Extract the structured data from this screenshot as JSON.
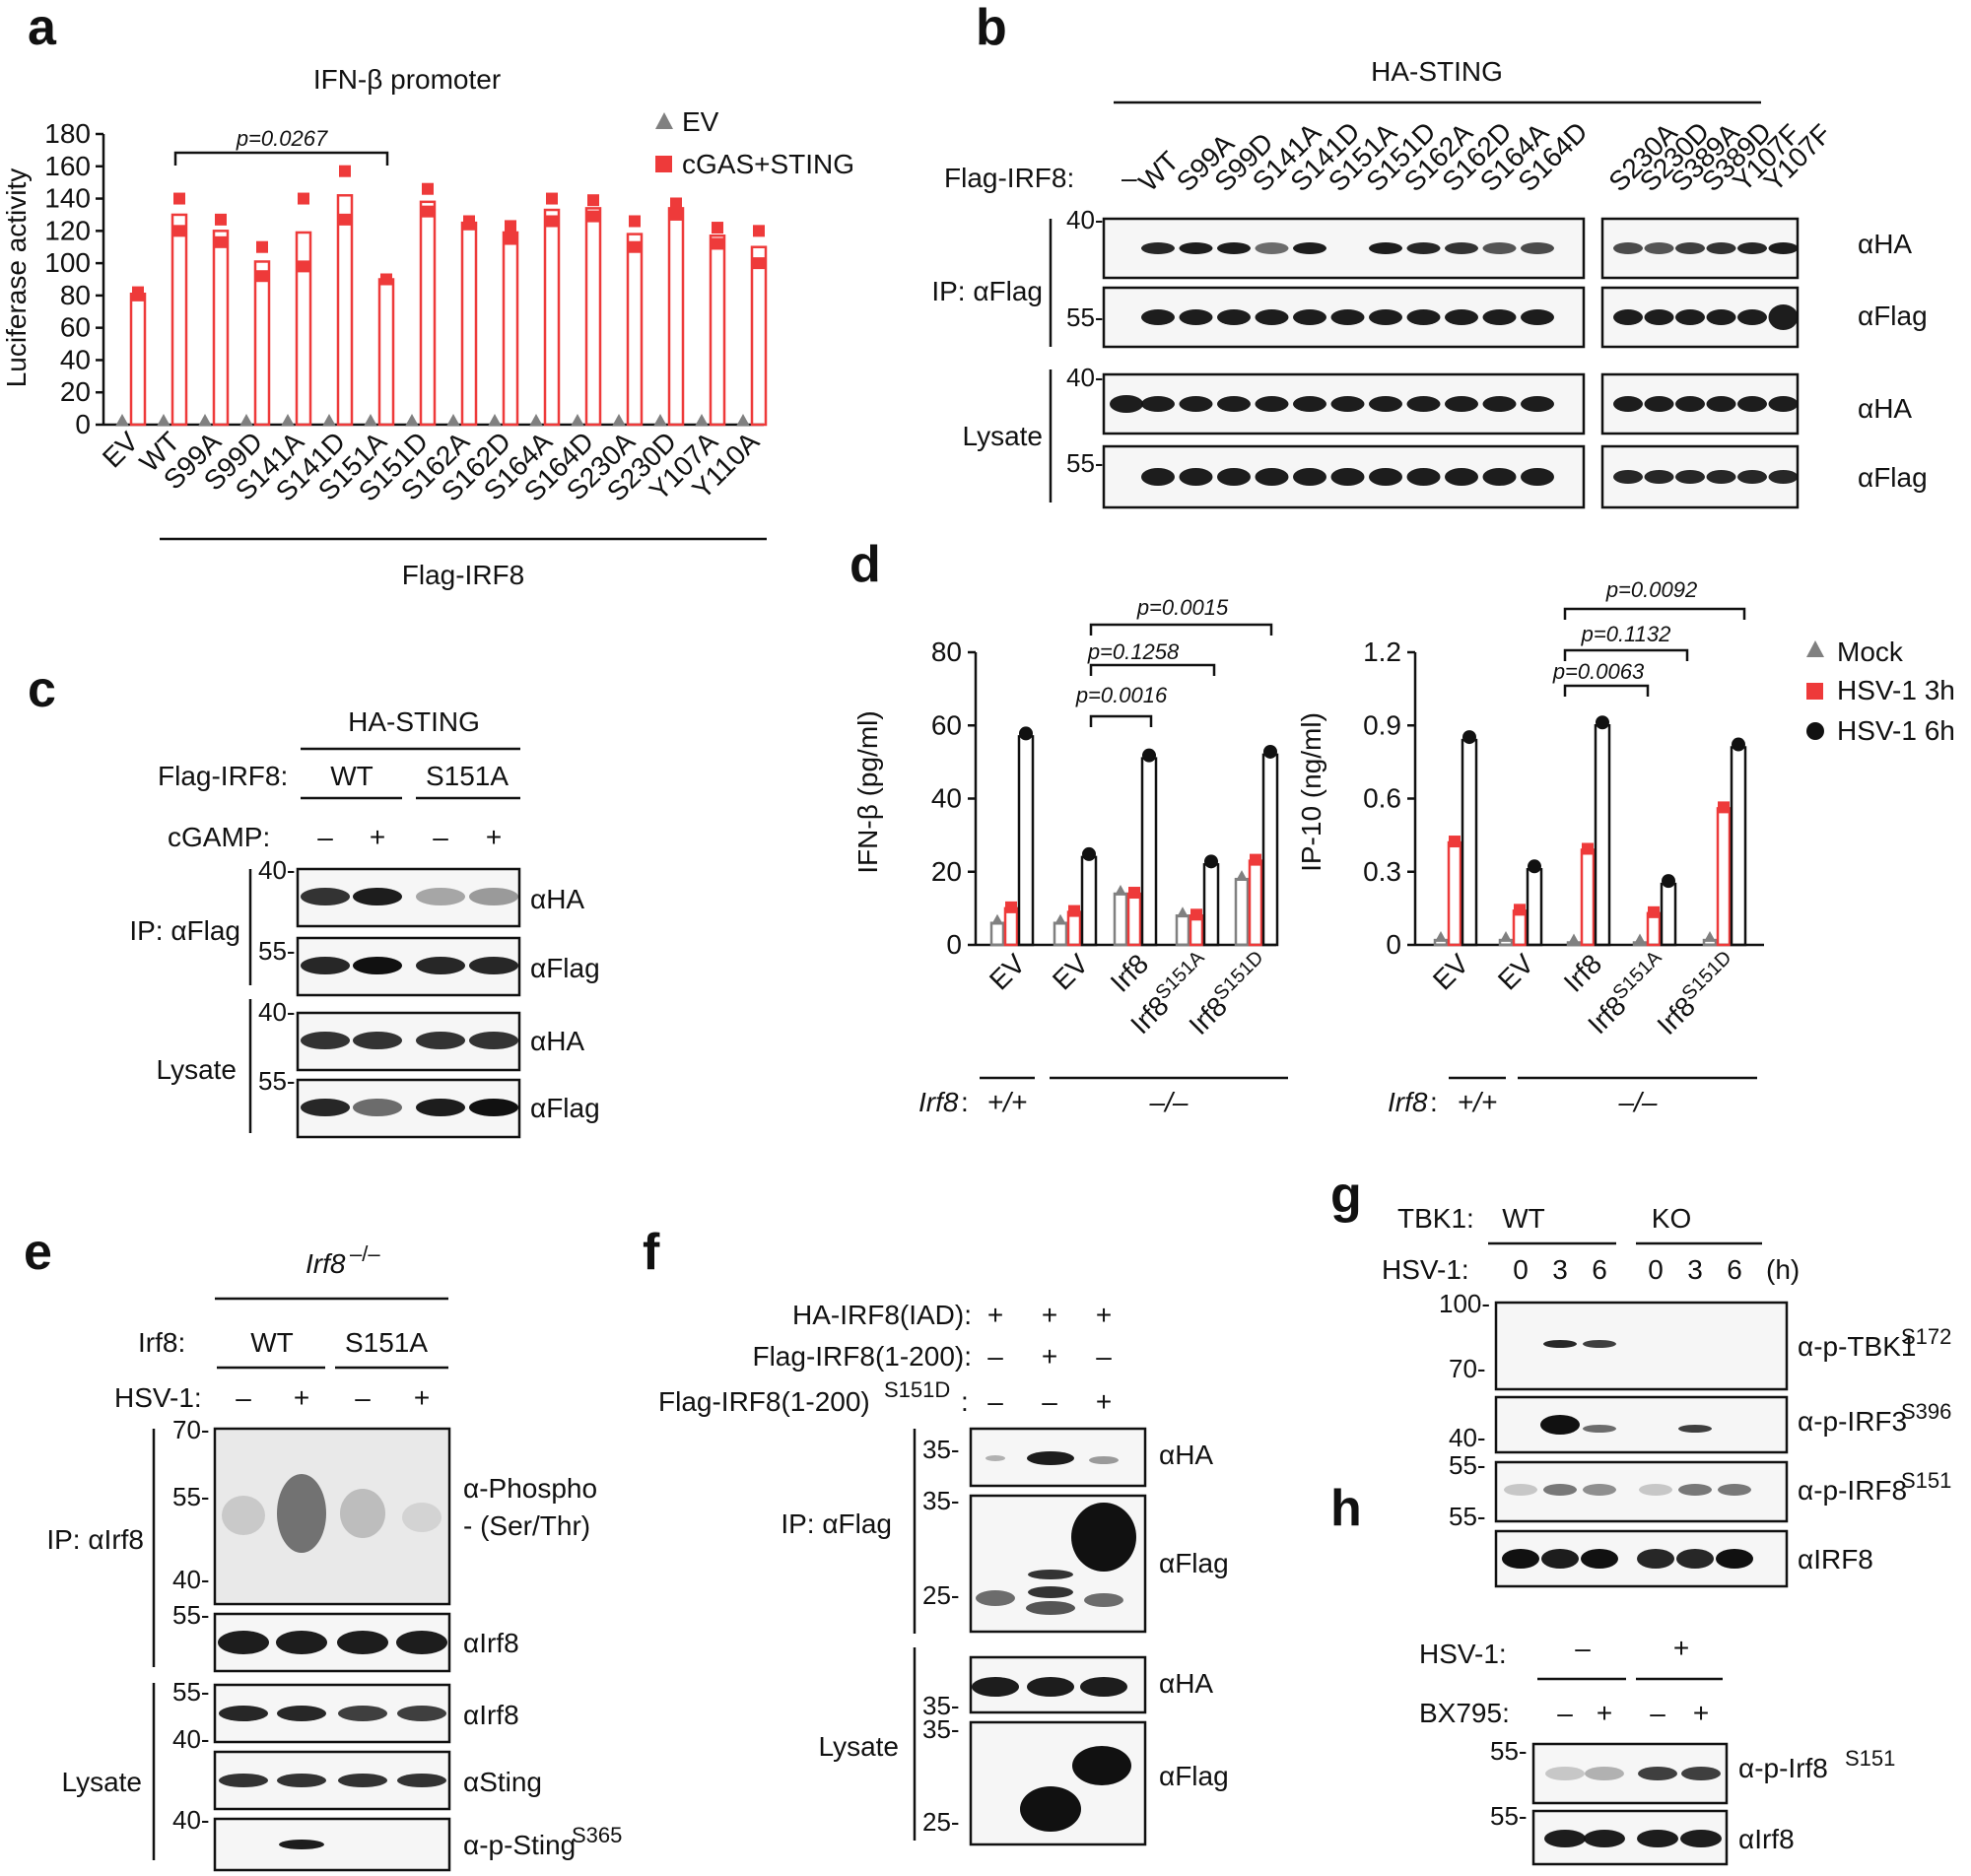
{
  "panel_letters": [
    "a",
    "b",
    "c",
    "d",
    "e",
    "f",
    "g",
    "h"
  ],
  "colors": {
    "ev": "#808080",
    "stim": "#ee3a3a",
    "mock": "#808080",
    "h3": "#ee3a3a",
    "h6": "#111111"
  },
  "panel_a": {
    "title": "IFN-β promoter",
    "ylabel": "Luciferase activity",
    "ticks": [
      "0",
      "20",
      "40",
      "60",
      "80",
      "100",
      "120",
      "140",
      "160",
      "180"
    ],
    "pvalue": "p=0.0267",
    "group_label": "Flag-IRF8",
    "legend": [
      "EV",
      "cGAS+STING"
    ]
  },
  "chart_data": [
    {
      "type": "bar",
      "title": "IFN-β promoter",
      "ylabel": "Luciferase activity",
      "ylim": [
        0,
        180
      ],
      "categories": [
        "EV",
        "WT",
        "S99A",
        "S99D",
        "S141A",
        "S141D",
        "S151A",
        "S151D",
        "S162A",
        "S162D",
        "S164A",
        "S164D",
        "S230A",
        "S230D",
        "Y107A",
        "Y110A"
      ],
      "series": [
        {
          "name": "EV",
          "values": [
            0,
            0,
            0,
            0,
            0,
            0,
            0,
            0,
            0,
            0,
            0,
            0,
            0,
            0,
            0,
            0
          ]
        },
        {
          "name": "cGAS+STING",
          "values": [
            81,
            130,
            120,
            101,
            119,
            142,
            90,
            138,
            125,
            119,
            133,
            134,
            118,
            134,
            117,
            110
          ]
        }
      ],
      "points": [
        [
          82,
          80
        ],
        [
          140,
          120
        ],
        [
          127,
          113
        ],
        [
          110,
          92
        ],
        [
          140,
          98
        ],
        [
          157,
          127
        ],
        [
          90,
          90
        ],
        [
          146,
          132
        ],
        [
          126,
          124
        ],
        [
          123,
          115
        ],
        [
          140,
          126
        ],
        [
          139,
          129
        ],
        [
          126,
          110
        ],
        [
          137,
          130
        ],
        [
          122,
          112
        ],
        [
          120,
          100
        ]
      ]
    },
    {
      "type": "bar",
      "ylabel": "IFN-β (pg/ml)",
      "ylim": [
        0,
        80
      ],
      "categories": [
        "EV",
        "EV",
        "Irf8",
        "Irf8S151A",
        "Irf8S151D"
      ],
      "genotype": [
        "+/+",
        "–/–",
        "–/–",
        "–/–",
        "–/–"
      ],
      "series": [
        {
          "name": "Mock",
          "values": [
            6,
            6,
            14,
            8,
            18
          ]
        },
        {
          "name": "HSV-1 3h",
          "values": [
            10,
            9,
            14,
            8,
            23
          ]
        },
        {
          "name": "HSV-1 6h",
          "values": [
            57,
            24,
            51,
            22,
            52
          ]
        }
      ],
      "pvalues": [
        "p=0.0016",
        "p=0.1258",
        "p=0.0015"
      ]
    },
    {
      "type": "bar",
      "ylabel": "IP-10 (ng/ml)",
      "ylim": [
        0,
        1.2
      ],
      "categories": [
        "EV",
        "EV",
        "Irf8",
        "Irf8S151A",
        "Irf8S151D"
      ],
      "genotype": [
        "+/+",
        "–/–",
        "–/–",
        "–/–",
        "–/–"
      ],
      "series": [
        {
          "name": "Mock",
          "values": [
            0.02,
            0.02,
            0.01,
            0.01,
            0.02
          ]
        },
        {
          "name": "HSV-1 3h",
          "values": [
            0.42,
            0.14,
            0.39,
            0.13,
            0.56
          ]
        },
        {
          "name": "HSV-1 6h",
          "values": [
            0.84,
            0.31,
            0.9,
            0.25,
            0.81
          ]
        }
      ],
      "pvalues": [
        "p=0.0063",
        "p=0.1132",
        "p=0.0092"
      ]
    }
  ],
  "panel_b": {
    "header": "HA-STING",
    "row_label": "Flag-IRF8:",
    "dash": "–",
    "lanes_left": [
      "WT",
      "S99A",
      "S99D",
      "S141A",
      "S141D",
      "S151A",
      "S151D",
      "S162A",
      "S162D",
      "S164A",
      "S164D"
    ],
    "lanes_right": [
      "S230A",
      "S230D",
      "S389A",
      "S389D",
      "Y107F",
      "Y107F"
    ],
    "ip": "IP: αFlag",
    "lysate": "Lysate",
    "blots": [
      "αHA",
      "αFlag",
      "αHA",
      "αFlag"
    ],
    "mw": [
      "40-",
      "55-",
      "40-",
      "55-"
    ]
  },
  "panel_c": {
    "header": "HA-STING",
    "row1": "Flag-IRF8:",
    "wt": "WT",
    "mut": "S151A",
    "row2": "cGAMP:",
    "signs": [
      "–",
      "+",
      "–",
      "+"
    ],
    "ip": "IP: αFlag",
    "lysate": "Lysate",
    "blots": [
      "αHA",
      "αFlag",
      "αHA",
      "αFlag"
    ],
    "mw": [
      "40-",
      "55-",
      "40-",
      "55-"
    ]
  },
  "panel_d": {
    "left_ticks": [
      "0",
      "20",
      "40",
      "60",
      "80"
    ],
    "right_ticks": [
      "0",
      "0.3",
      "0.6",
      "0.9",
      "1.2"
    ],
    "left_ylabel": "IFN-β (pg/ml)",
    "right_ylabel": "IP-10 (ng/ml)",
    "cats": [
      "EV",
      "EV",
      "Irf8",
      "Irf8",
      "Irf8"
    ],
    "sups": [
      "",
      "",
      "",
      "S151A",
      "S151D"
    ],
    "geno_label": "Irf8",
    "geno_colon": ":",
    "wt": "+/+",
    "ko": "–/–",
    "legend": [
      "Mock",
      "HSV-1 3h",
      "HSV-1 6h"
    ]
  },
  "panel_e": {
    "header": "Irf8",
    "header_sup": " –/–",
    "row1": "Irf8:",
    "wt": "WT",
    "mut": "S151A",
    "row2": "HSV-1:",
    "signs": [
      "–",
      "+",
      "–",
      "+"
    ],
    "ip": "IP: αIrf8",
    "lysate": "Lysate",
    "blot1a": "α-Phospho",
    "blot1b": "- (Ser/Thr)",
    "blot2": "αIrf8",
    "blot3": "αIrf8",
    "blot4": "αSting",
    "blot5": "α-p-Sting",
    "blot5_sup": "S365",
    "mw": [
      "70-",
      "55-",
      "40-",
      "55-",
      "55-",
      "40-",
      "40-"
    ]
  },
  "panel_f": {
    "rows": [
      "HA-IRF8(IAD):",
      "Flag-IRF8(1-200):",
      "Flag-IRF8(1-200)"
    ],
    "row3_sup": "S151D",
    "row3_colon": ":",
    "signs": [
      [
        "+",
        "+",
        "+"
      ],
      [
        "–",
        "+",
        "–"
      ],
      [
        "–",
        "–",
        "+"
      ]
    ],
    "ip": "IP: αFlag",
    "lysate": "Lysate",
    "blots": [
      "αHA",
      "αFlag",
      "αHA",
      "αFlag"
    ],
    "mw": [
      "35-",
      "35-",
      "25-",
      "35-",
      "35-",
      "25-"
    ]
  },
  "panel_g": {
    "row1": "TBK1:",
    "wt": "WT",
    "ko": "KO",
    "row2": "HSV-1:",
    "times": [
      "0",
      "3",
      "6",
      "0",
      "3",
      "6"
    ],
    "unit": "(h)",
    "blot1": "α-p-TBK1",
    "blot1_sup": "S172",
    "blot2": "α-p-IRF3",
    "blot2_sup": "S396",
    "blot3": "α-p-IRF8",
    "blot3_sup": "S151",
    "blot4": "αIRF8",
    "mw": [
      "100-",
      "70-",
      "40-",
      "55-",
      "55-"
    ]
  },
  "panel_h": {
    "row1": "HSV-1:",
    "signs1": [
      "–",
      "+"
    ],
    "row2": "BX795:",
    "signs2": [
      "–",
      "+",
      "–",
      "+"
    ],
    "blot1": "α-p-Irf8",
    "blot1_sup": "S151",
    "blot2": "αIrf8",
    "mw": [
      "55-",
      "55-"
    ]
  }
}
